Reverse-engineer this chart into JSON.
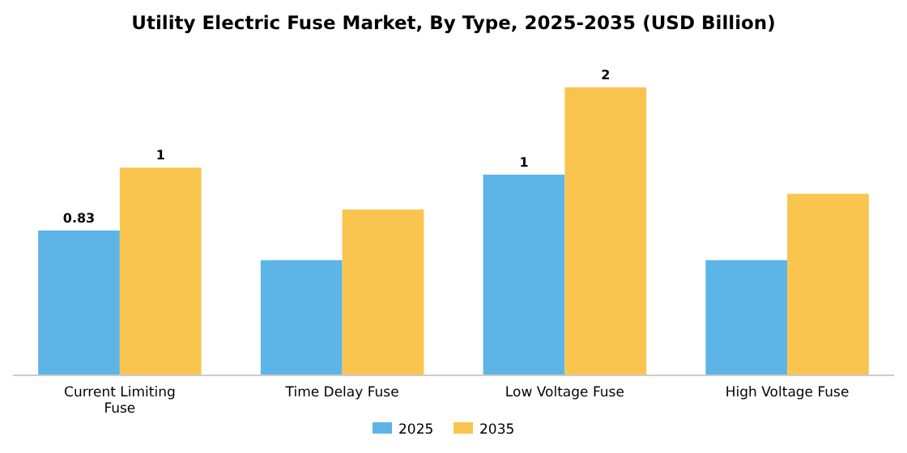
{
  "chart_data": {
    "type": "bar",
    "title": "Utility Electric Fuse Market, By Type, 2025-2035 (USD Billion)",
    "categories": [
      "Current Limiting Fuse",
      "Time Delay Fuse",
      "Low Voltage Fuse",
      "High Voltage Fuse"
    ],
    "series": [
      {
        "name": "2025",
        "color": "#5db4e6",
        "values": [
          0.83,
          0.66,
          1.15,
          0.66
        ],
        "value_labels": [
          "0.83",
          null,
          "1",
          null
        ]
      },
      {
        "name": "2035",
        "color": "#f9c54e",
        "values": [
          1.19,
          0.95,
          1.65,
          1.04
        ],
        "value_labels": [
          "1",
          null,
          "2",
          null
        ]
      }
    ],
    "legend": "bottom"
  }
}
